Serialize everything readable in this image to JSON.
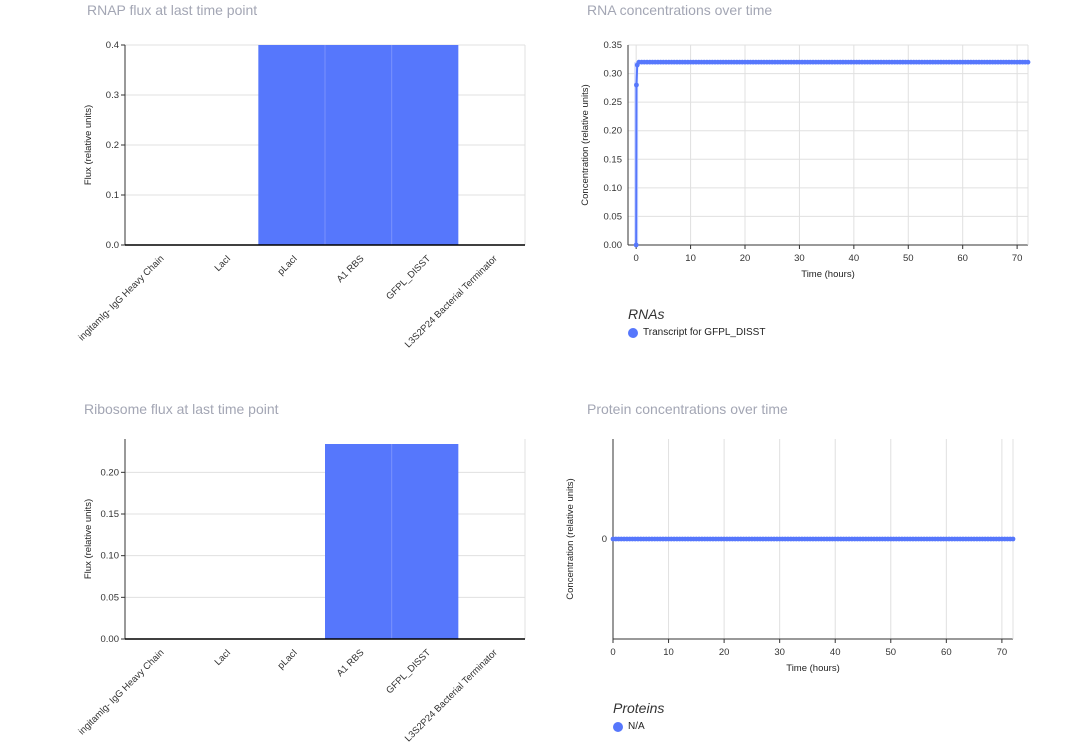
{
  "colors": {
    "series": "#5677fc",
    "grid": "#e0e0e0",
    "axis": "#000000",
    "title": "#a3a6b4"
  },
  "chart_data": [
    {
      "id": "rnap",
      "type": "bar",
      "title": "RNAP flux at last time point",
      "ylabel": "Flux (relative units)",
      "xlabel": "",
      "categories": [
        "ingitamlg- IgG Heavy Chain",
        "LacI",
        "pLacI",
        "A1 RBS",
        "GFPL_DISST",
        "L3S2P24 Bacterial Terminator"
      ],
      "values": [
        0,
        0,
        0.4,
        0.4,
        0.4,
        0
      ],
      "ylim": [
        0,
        0.4
      ],
      "yticks": [
        "0.0",
        "0.1",
        "0.2",
        "0.3",
        "0.4"
      ],
      "grid": true
    },
    {
      "id": "ribo",
      "type": "bar",
      "title": "Ribosome flux at last time point",
      "ylabel": "Flux (relative units)",
      "xlabel": "",
      "categories": [
        "ingitamlg- IgG Heavy Chain",
        "LacI",
        "pLacI",
        "A1 RBS",
        "GFPL_DISST",
        "L3S2P24 Bacterial Terminator"
      ],
      "values": [
        0,
        0,
        0,
        0.234,
        0.234,
        0
      ],
      "ylim": [
        0,
        0.24
      ],
      "yticks": [
        "0.00",
        "0.05",
        "0.10",
        "0.15",
        "0.20"
      ],
      "grid": true
    },
    {
      "id": "rna",
      "type": "line",
      "title": "RNA concentrations over time",
      "xlabel": "Time (hours)",
      "ylabel": "Concentration (relative units)",
      "xlim": [
        -1.5,
        72
      ],
      "ylim": [
        0,
        0.35
      ],
      "xticks": [
        "0",
        "10",
        "20",
        "30",
        "40",
        "50",
        "60",
        "70"
      ],
      "yticks": [
        "0.00",
        "0.05",
        "0.10",
        "0.15",
        "0.20",
        "0.25",
        "0.30",
        "0.35"
      ],
      "legend_title": "RNAs",
      "series": [
        {
          "name": "Transcript for GFPL_DISST",
          "x_start": 0,
          "x_end": 72,
          "x_step": 0.5,
          "initial": [
            [
              0,
              0
            ],
            [
              0.05,
              0.28
            ],
            [
              0.2,
              0.315
            ],
            [
              0.5,
              0.32
            ]
          ],
          "plateau": 0.32
        }
      ],
      "grid": true
    },
    {
      "id": "protein",
      "type": "line",
      "title": "Protein concentrations over time",
      "xlabel": "Time (hours)",
      "ylabel": "Concentration (relative units)",
      "xlim": [
        0,
        72
      ],
      "ylim": [
        -1,
        1
      ],
      "xticks": [
        "0",
        "10",
        "20",
        "30",
        "40",
        "50",
        "60",
        "70"
      ],
      "yticks": [
        "0"
      ],
      "legend_title": "Proteins",
      "series": [
        {
          "name": "N/A",
          "x_start": 0,
          "x_end": 72,
          "x_step": 0.5,
          "initial": [],
          "plateau": 0
        }
      ],
      "grid": true
    }
  ]
}
